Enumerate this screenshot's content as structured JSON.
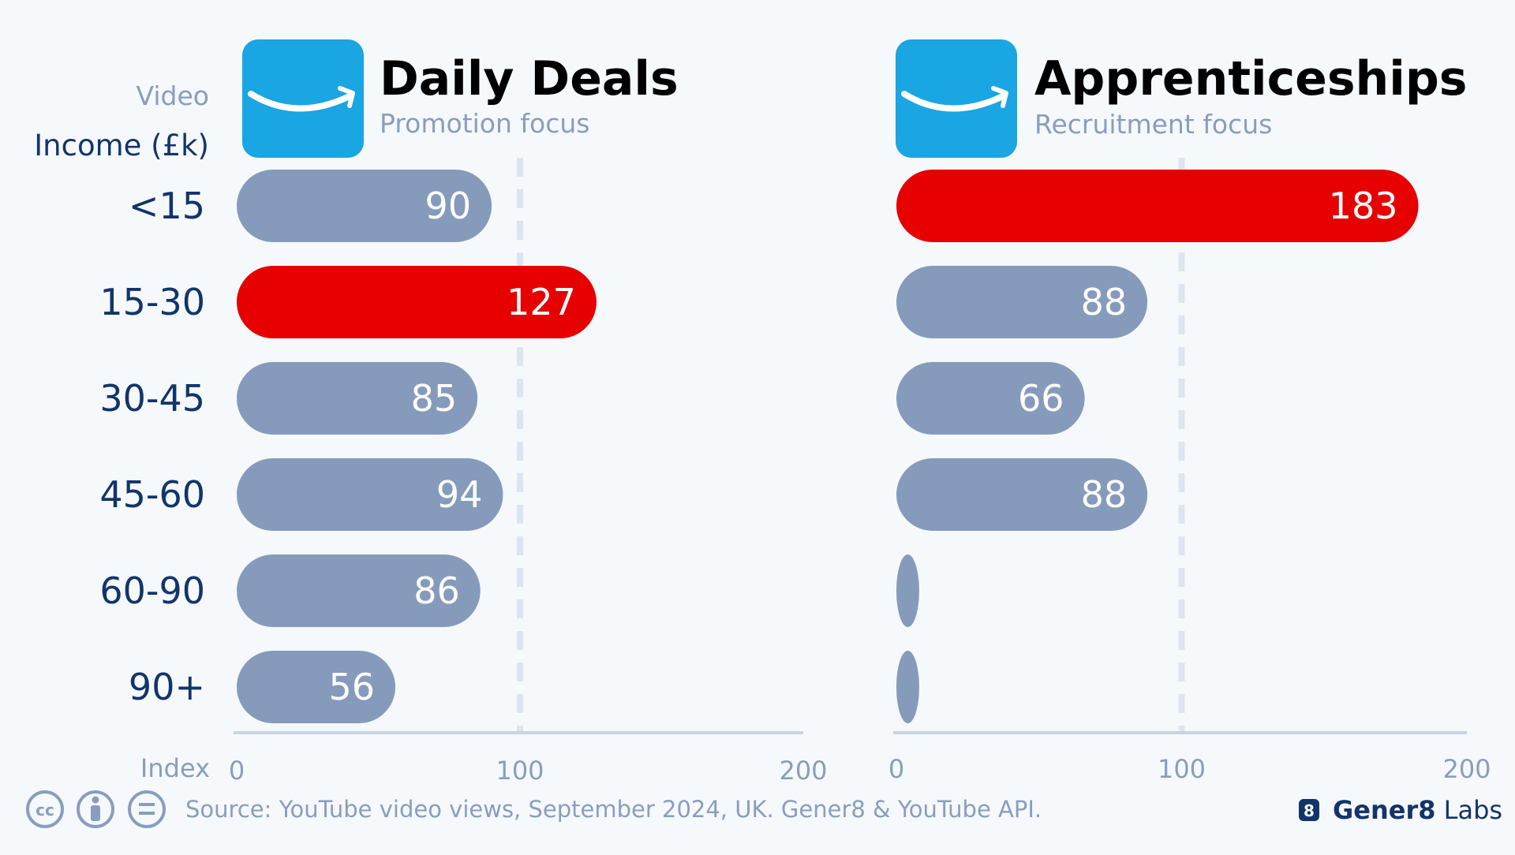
{
  "header": {
    "video_label": "Video",
    "income_label": "Income (£k)",
    "index_label": "Index"
  },
  "colors": {
    "background": "#f6f9fc",
    "bar_default": "#869bbb",
    "bar_highlight": "#e60000",
    "logo_bg": "#1aa5e3",
    "label_text": "#13346b",
    "muted_text": "#8a9dbf",
    "title_text": "#000000",
    "axis_line": "#c9d4e2",
    "ref_line": "#dde5ee"
  },
  "chart_data": [
    {
      "type": "bar",
      "orientation": "horizontal",
      "title": "Daily Deals",
      "subtitle": "Promotion focus",
      "logo": "amazon-smile-logo",
      "categories": [
        "<15",
        "15-30",
        "30-45",
        "45-60",
        "60-90",
        "90+"
      ],
      "values": [
        90,
        127,
        85,
        94,
        86,
        56
      ],
      "highlight": "15-30",
      "xlim": [
        0,
        200
      ],
      "xticks": [
        "0",
        "100",
        "200"
      ],
      "reference_line": 100
    },
    {
      "type": "bar",
      "orientation": "horizontal",
      "title": "Apprenticeships",
      "subtitle": "Recruitment focus",
      "logo": "amazon-smile-logo",
      "categories": [
        "<15",
        "15-30",
        "30-45",
        "45-60",
        "60-90",
        "90+"
      ],
      "values": [
        183,
        88,
        66,
        88,
        8,
        8
      ],
      "value_labels": [
        "183",
        "88",
        "66",
        "88",
        "",
        ""
      ],
      "highlight": "<15",
      "xlim": [
        0,
        200
      ],
      "xticks": [
        "0",
        "100",
        "200"
      ],
      "reference_line": 100
    }
  ],
  "footer": {
    "license_icons": [
      "cc-icon",
      "attribution-icon",
      "no-derivatives-icon"
    ],
    "source": "Source: YouTube video views, September 2024, UK. Gener8 & YouTube API.",
    "brand_badge": "8",
    "brand_bold": "Gener8",
    "brand_light": " Labs"
  }
}
